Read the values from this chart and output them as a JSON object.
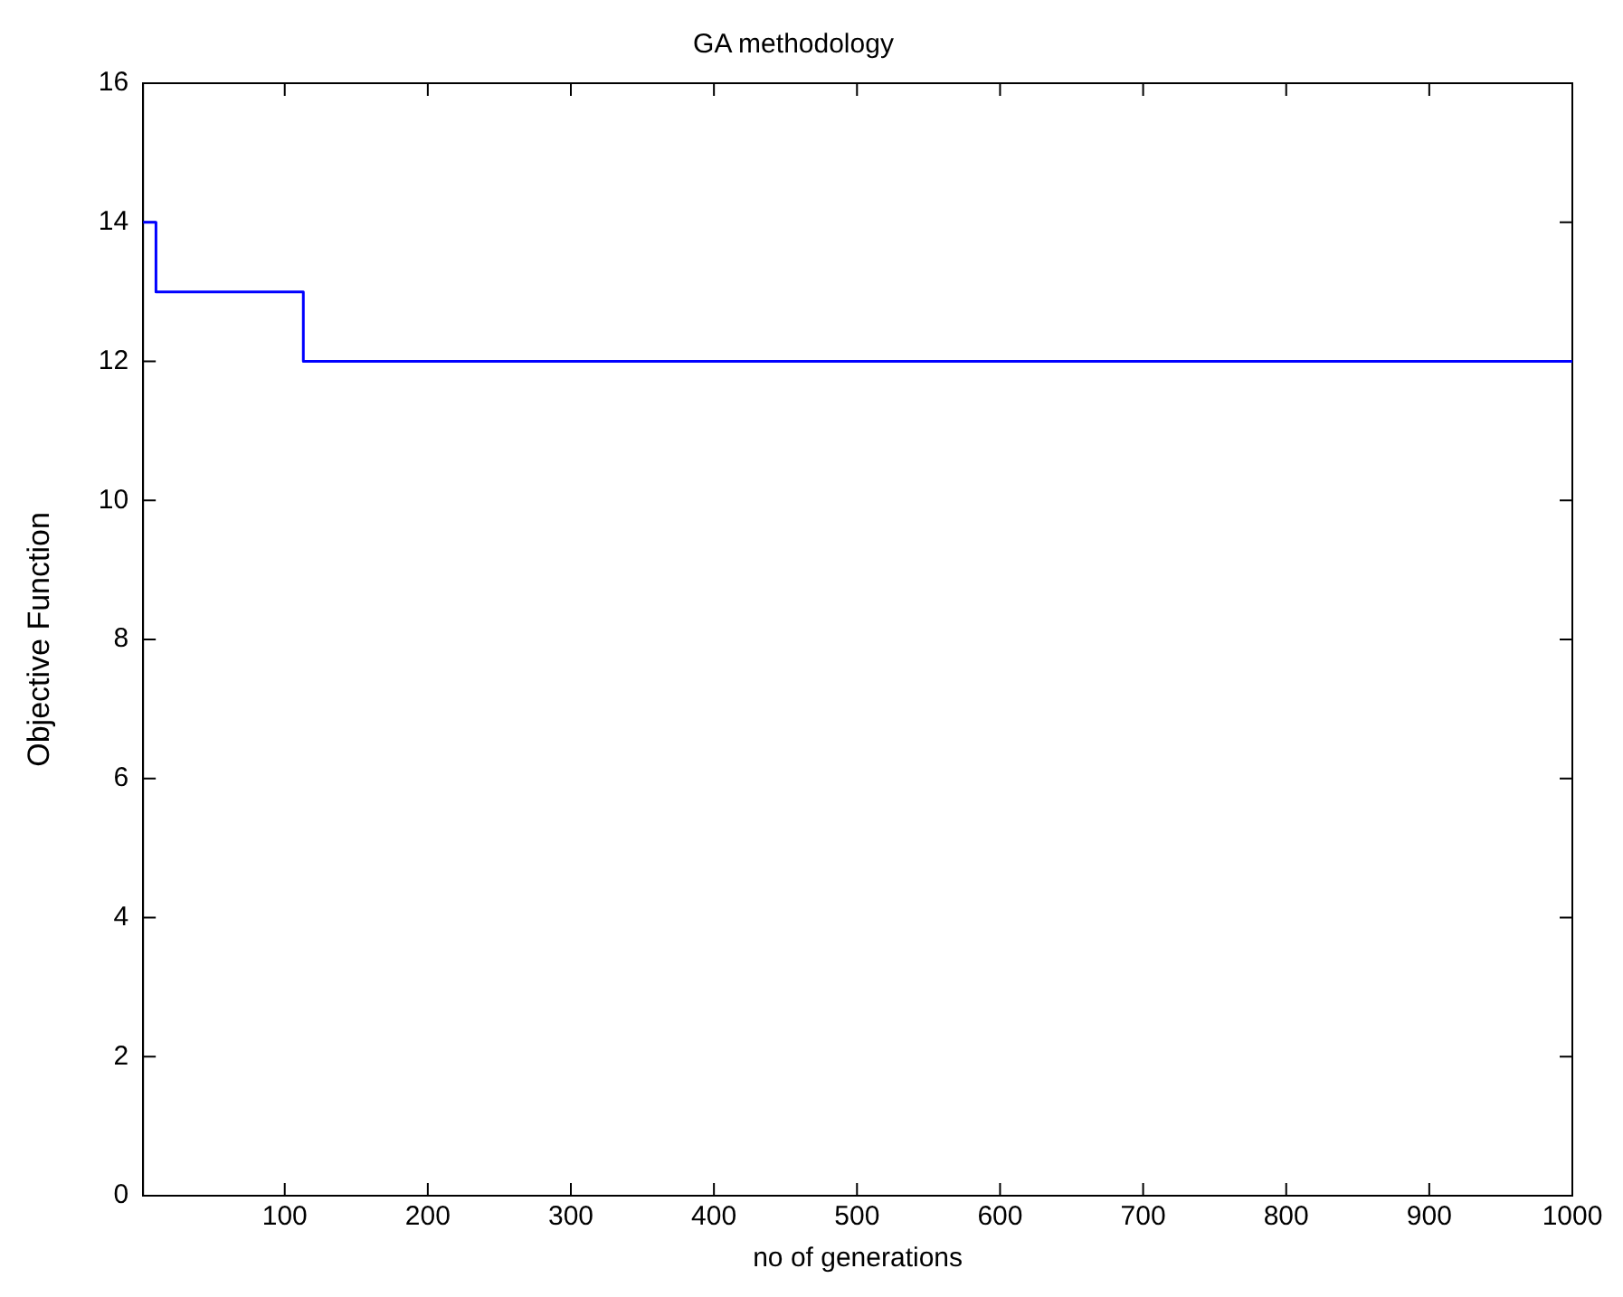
{
  "chart_data": {
    "type": "step",
    "title": "GA methodology",
    "xlabel": "no of generations",
    "ylabel": "Objective Function",
    "series": [
      {
        "color": "#0000ff",
        "x": [
          1,
          10,
          113,
          1000
        ],
        "values": [
          14,
          13,
          12,
          12
        ]
      }
    ],
    "xlim": [
      1,
      1000
    ],
    "xticks": [
      100,
      200,
      300,
      400,
      500,
      600,
      700,
      800,
      900,
      1000
    ],
    "ylim": [
      0,
      16
    ],
    "yticks": [
      0,
      2,
      4,
      6,
      8,
      10,
      12,
      14,
      16
    ],
    "grid": false,
    "legend": false,
    "marker": "none",
    "line_style": "solid"
  }
}
